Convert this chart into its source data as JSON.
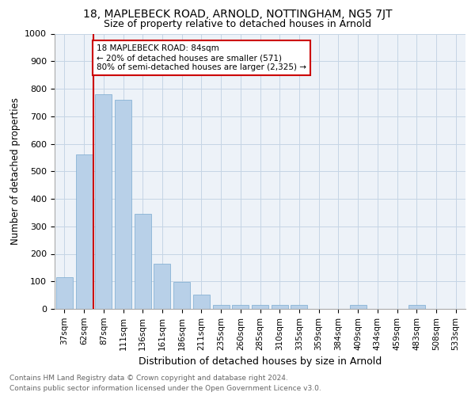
{
  "title1": "18, MAPLEBECK ROAD, ARNOLD, NOTTINGHAM, NG5 7JT",
  "title2": "Size of property relative to detached houses in Arnold",
  "xlabel": "Distribution of detached houses by size in Arnold",
  "ylabel": "Number of detached properties",
  "categories": [
    "37sqm",
    "62sqm",
    "87sqm",
    "111sqm",
    "136sqm",
    "161sqm",
    "186sqm",
    "211sqm",
    "235sqm",
    "260sqm",
    "285sqm",
    "310sqm",
    "335sqm",
    "359sqm",
    "384sqm",
    "409sqm",
    "434sqm",
    "459sqm",
    "483sqm",
    "508sqm",
    "533sqm"
  ],
  "values": [
    115,
    560,
    780,
    760,
    345,
    165,
    98,
    52,
    15,
    15,
    15,
    15,
    15,
    0,
    0,
    13,
    0,
    0,
    13,
    0,
    0
  ],
  "bar_color": "#b8d0e8",
  "bar_edge_color": "#7aaad0",
  "annotation_line1": "18 MAPLEBECK ROAD: 84sqm",
  "annotation_line2": "← 20% of detached houses are smaller (571)",
  "annotation_line3": "80% of semi-detached houses are larger (2,325) →",
  "annotation_box_facecolor": "#ffffff",
  "annotation_box_edgecolor": "#cc0000",
  "property_line_color": "#cc0000",
  "property_line_index": 2,
  "ylim": [
    0,
    1000
  ],
  "yticks": [
    0,
    100,
    200,
    300,
    400,
    500,
    600,
    700,
    800,
    900,
    1000
  ],
  "footer_line1": "Contains HM Land Registry data © Crown copyright and database right 2024.",
  "footer_line2": "Contains public sector information licensed under the Open Government Licence v3.0.",
  "bg_color": "#edf2f8",
  "grid_color": "#c5d5e5",
  "title1_fontsize": 10,
  "title2_fontsize": 9,
  "xlabel_fontsize": 9,
  "ylabel_fontsize": 8.5,
  "tick_fontsize": 8,
  "xtick_fontsize": 7.5,
  "footer_fontsize": 6.5,
  "footer_color": "#666666"
}
